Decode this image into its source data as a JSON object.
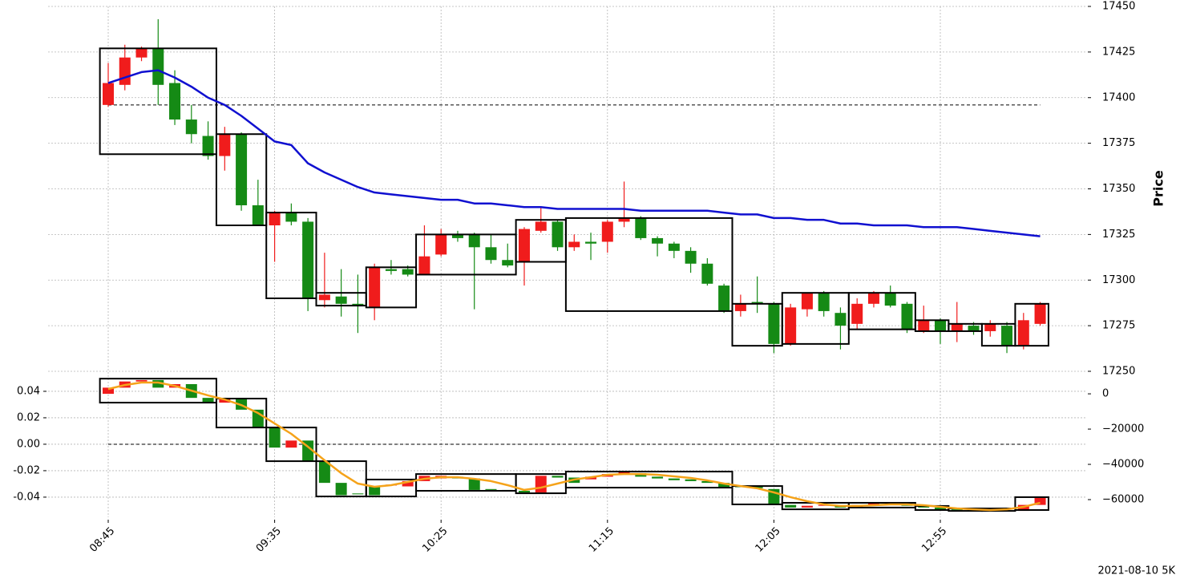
{
  "chart_data": {
    "type": "candlestick",
    "footnote": "2021-08-10 5K",
    "up_color": "#f01c1c",
    "down_color": "#158a15",
    "grid": true,
    "categories": [
      "08:45",
      null,
      null,
      null,
      null,
      null,
      null,
      null,
      null,
      null,
      "09:35",
      null,
      null,
      null,
      null,
      null,
      null,
      null,
      null,
      null,
      "10:25",
      null,
      null,
      null,
      null,
      null,
      null,
      null,
      null,
      null,
      "11:15",
      null,
      null,
      null,
      null,
      null,
      null,
      null,
      null,
      null,
      "12:05",
      null,
      null,
      null,
      null,
      null,
      null,
      null,
      null,
      null,
      "12:55",
      null,
      null,
      null,
      null,
      null,
      null
    ],
    "price": {
      "ylabel": "Price",
      "ylim": [
        17250,
        17450
      ],
      "yticks": [
        17250,
        17275,
        17300,
        17325,
        17350,
        17375,
        17400,
        17425,
        17450
      ],
      "open": [
        17396,
        17407,
        17422,
        17427,
        17408,
        17388,
        17379,
        17368,
        17380,
        17341,
        17330,
        17337,
        17332,
        17289,
        17291,
        17287,
        17285,
        17306,
        17306,
        17303,
        17314,
        17325,
        17325,
        17318,
        17311,
        17310,
        17327,
        17332,
        17318,
        17321,
        17321,
        17332,
        17334,
        17323,
        17320,
        17316,
        17309,
        17297,
        17283,
        17288,
        17287,
        17265,
        17284,
        17293,
        17282,
        17276,
        17287,
        17293,
        17287,
        17272,
        17278,
        17272,
        17275,
        17272,
        17275,
        17264,
        17276
      ],
      "high": [
        17419,
        17429,
        17428,
        17443,
        17415,
        17396,
        17387,
        17384,
        17381,
        17355,
        17338,
        17342,
        17334,
        17315,
        17306,
        17303,
        17309,
        17311,
        17308,
        17330,
        17328,
        17327,
        17326,
        17325,
        17320,
        17329,
        17340,
        17333,
        17325,
        17326,
        17333,
        17354,
        17335,
        17324,
        17321,
        17318,
        17312,
        17298,
        17292,
        17302,
        17288,
        17287,
        17293,
        17294,
        17285,
        17290,
        17294,
        17297,
        17288,
        17286,
        17279,
        17288,
        17277,
        17278,
        17277,
        17282,
        17288
      ],
      "low": [
        17395,
        17404,
        17420,
        17396,
        17385,
        17375,
        17366,
        17360,
        17338,
        17330,
        17310,
        17330,
        17283,
        17285,
        17280,
        17271,
        17278,
        17303,
        17302,
        17303,
        17313,
        17321,
        17284,
        17309,
        17307,
        17297,
        17326,
        17316,
        17316,
        17311,
        17315,
        17329,
        17322,
        17313,
        17312,
        17304,
        17297,
        17282,
        17280,
        17282,
        17260,
        17264,
        17280,
        17280,
        17262,
        17273,
        17285,
        17285,
        17271,
        17271,
        17265,
        17266,
        17270,
        17269,
        17260,
        17262,
        17275
      ],
      "close": [
        17408,
        17422,
        17427,
        17407,
        17388,
        17380,
        17368,
        17380,
        17341,
        17330,
        17337,
        17332,
        17290,
        17292,
        17287,
        17286,
        17307,
        17305,
        17303,
        17313,
        17325,
        17323,
        17318,
        17311,
        17308,
        17328,
        17332,
        17318,
        17321,
        17320,
        17332,
        17334,
        17323,
        17320,
        17316,
        17309,
        17298,
        17283,
        17287,
        17287,
        17265,
        17285,
        17293,
        17283,
        17275,
        17287,
        17293,
        17286,
        17273,
        17278,
        17272,
        17276,
        17272,
        17276,
        17264,
        17278,
        17287
      ],
      "ma": {
        "color": "#1010d0",
        "values": [
          17408,
          17411,
          17414,
          17415,
          17411,
          17406,
          17400,
          17396,
          17390,
          17383,
          17376,
          17374,
          17364,
          17359,
          17355,
          17351,
          17348,
          17347,
          17346,
          17345,
          17344,
          17344,
          17342,
          17342,
          17341,
          17340,
          17340,
          17339,
          17339,
          17339,
          17339,
          17339,
          17338,
          17338,
          17338,
          17338,
          17338,
          17337,
          17336,
          17336,
          17334,
          17334,
          17333,
          17333,
          17331,
          17331,
          17330,
          17330,
          17330,
          17329,
          17329,
          17329,
          17328,
          17327,
          17326,
          17325,
          17324
        ]
      },
      "hline": 17396,
      "boxes": [
        {
          "start": 0,
          "end": 6,
          "high": 17427,
          "low": 17369
        },
        {
          "start": 7,
          "end": 9,
          "high": 17380,
          "low": 17330
        },
        {
          "start": 10,
          "end": 12,
          "high": 17337,
          "low": 17290
        },
        {
          "start": 13,
          "end": 15,
          "high": 17293,
          "low": 17286
        },
        {
          "start": 16,
          "end": 18,
          "high": 17307,
          "low": 17285
        },
        {
          "start": 19,
          "end": 24,
          "high": 17325,
          "low": 17303
        },
        {
          "start": 25,
          "end": 27,
          "high": 17333,
          "low": 17310
        },
        {
          "start": 28,
          "end": 37,
          "high": 17334,
          "low": 17283
        },
        {
          "start": 38,
          "end": 40,
          "high": 17287,
          "low": 17264
        },
        {
          "start": 41,
          "end": 44,
          "high": 17293,
          "low": 17265
        },
        {
          "start": 45,
          "end": 48,
          "high": 17293,
          "low": 17273
        },
        {
          "start": 49,
          "end": 50,
          "high": 17278,
          "low": 17272
        },
        {
          "start": 51,
          "end": 52,
          "high": 17276,
          "low": 17272
        },
        {
          "start": 53,
          "end": 54,
          "high": 17276,
          "low": 17264
        },
        {
          "start": 55,
          "end": 56,
          "high": 17287,
          "low": 17264
        }
      ]
    },
    "indicator": {
      "ylim": [
        -0.0552,
        0.0521
      ],
      "yticks": [
        -0.04,
        -0.02,
        {
          "value": 0,
          "label": "0.00"
        },
        0.02,
        0.04
      ],
      "y2lim": [
        -70000,
        10500
      ],
      "y2ticks": [
        {
          "value": -60000,
          "label": "−60000"
        },
        {
          "value": -40000,
          "label": "−40000"
        },
        {
          "value": -20000,
          "label": "−20000"
        },
        0
      ],
      "open": [
        0,
        3500,
        7000,
        7800,
        3500,
        5500,
        -2300,
        -5000,
        -3000,
        -9000,
        -19000,
        -30500,
        -26500,
        -38000,
        -50500,
        -56500,
        -52500,
        -52000,
        -52500,
        -49500,
        -48000,
        -47000,
        -48000,
        -54000,
        -54500,
        -55000,
        -56000,
        -46500,
        -47500,
        -48500,
        -47000,
        -45500,
        -45000,
        -47000,
        -48000,
        -48500,
        -49500,
        -50500,
        -52500,
        -52700,
        -54000,
        -63000,
        -64500,
        -63500,
        -63500,
        -64500,
        -63000,
        -62200,
        -62500,
        -63500,
        -64500,
        -65500,
        -65800,
        -66000,
        -66200,
        -66400,
        -63000
      ],
      "close": [
        3500,
        7000,
        7800,
        3500,
        5500,
        -2300,
        -5000,
        -3000,
        -9000,
        -19000,
        -30500,
        -26500,
        -38000,
        -50500,
        -57500,
        -57000,
        -57500,
        -51500,
        -49500,
        -46500,
        -46500,
        -48000,
        -54500,
        -54500,
        -54700,
        -56000,
        -46500,
        -47500,
        -50500,
        -47000,
        -45500,
        -44500,
        -47000,
        -48000,
        -49000,
        -49500,
        -50500,
        -53000,
        -52700,
        -53500,
        -63000,
        -64500,
        -63500,
        -63000,
        -64500,
        -63000,
        -62000,
        -61800,
        -63500,
        -64500,
        -65500,
        -65800,
        -66000,
        -66200,
        -66400,
        -63000,
        -59000
      ],
      "line": {
        "color": "#f5a31a",
        "values": [
          2700,
          5000,
          6400,
          6400,
          4500,
          1800,
          -900,
          -3200,
          -6400,
          -10900,
          -16800,
          -22700,
          -30000,
          -37700,
          -45000,
          -50900,
          -52700,
          -51800,
          -50000,
          -48200,
          -47300,
          -47300,
          -48200,
          -49500,
          -51800,
          -54500,
          -53200,
          -50900,
          -48600,
          -47300,
          -45900,
          -45500,
          -45500,
          -45900,
          -46800,
          -47700,
          -49100,
          -50900,
          -52300,
          -53600,
          -55900,
          -58600,
          -60900,
          -62700,
          -63600,
          -63600,
          -63200,
          -62700,
          -62700,
          -63200,
          -64100,
          -65000,
          -65500,
          -65900,
          -65500,
          -64100,
          -61800
        ]
      },
      "hline": 0,
      "boxes": [
        {
          "start": 0,
          "end": 6,
          "high": 8600,
          "low": -5000
        },
        {
          "start": 7,
          "end": 9,
          "high": -2700,
          "low": -19100
        },
        {
          "start": 10,
          "end": 12,
          "high": -19100,
          "low": -38200
        },
        {
          "start": 13,
          "end": 15,
          "high": -38200,
          "low": -58200
        },
        {
          "start": 16,
          "end": 18,
          "high": -48600,
          "low": -58200
        },
        {
          "start": 19,
          "end": 24,
          "high": -45500,
          "low": -55000
        },
        {
          "start": 25,
          "end": 27,
          "high": -45500,
          "low": -56400
        },
        {
          "start": 28,
          "end": 37,
          "high": -44100,
          "low": -53200
        },
        {
          "start": 38,
          "end": 40,
          "high": -52300,
          "low": -62700
        },
        {
          "start": 41,
          "end": 44,
          "high": -61800,
          "low": -65500
        },
        {
          "start": 45,
          "end": 48,
          "high": -61800,
          "low": -64500
        },
        {
          "start": 49,
          "end": 50,
          "high": -63600,
          "low": -65900
        },
        {
          "start": 51,
          "end": 52,
          "high": -65000,
          "low": -66400
        },
        {
          "start": 53,
          "end": 54,
          "high": -65000,
          "low": -66400
        },
        {
          "start": 55,
          "end": 56,
          "high": -58600,
          "low": -65900
        }
      ]
    }
  }
}
